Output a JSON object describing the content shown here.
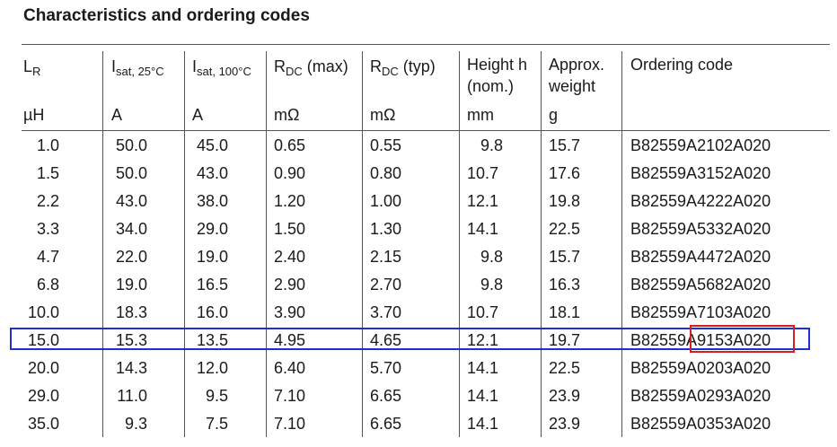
{
  "title": "Characteristics and ordering codes",
  "headers": {
    "lr": {
      "main": "L",
      "sub": "R",
      "unit": "µH"
    },
    "isat25": {
      "main": "I",
      "sub": "sat, 25°C",
      "unit": "A"
    },
    "isat100": {
      "main": "I",
      "sub": "sat, 100°C",
      "unit": "A"
    },
    "rdcmax": {
      "main": "R",
      "sub": "DC",
      "suffix": " (max)",
      "unit": "mΩ"
    },
    "rdctyp": {
      "main": "R",
      "sub": "DC",
      "suffix": " (typ)",
      "unit": "mΩ"
    },
    "height": {
      "line1": "Height h",
      "line2": "(nom.)",
      "unit": "mm"
    },
    "weight": {
      "line1": "Approx.",
      "line2": "weight",
      "unit": "g"
    },
    "code": {
      "line1": "Ordering code"
    }
  },
  "rows": [
    [
      "1.0",
      "50.0",
      "45.0",
      "0.65",
      "0.55",
      "9.8",
      "15.7",
      "B82559A2102A020"
    ],
    [
      "1.5",
      "50.0",
      "43.0",
      "0.90",
      "0.80",
      "10.7",
      "17.6",
      "B82559A3152A020"
    ],
    [
      "2.2",
      "43.0",
      "38.0",
      "1.20",
      "1.00",
      "12.1",
      "19.8",
      "B82559A4222A020"
    ],
    [
      "3.3",
      "34.0",
      "29.0",
      "1.50",
      "1.30",
      "14.1",
      "22.5",
      "B82559A5332A020"
    ],
    [
      "4.7",
      "22.0",
      "19.0",
      "2.40",
      "2.15",
      "9.8",
      "15.7",
      "B82559A4472A020"
    ],
    [
      "6.8",
      "19.0",
      "16.5",
      "2.90",
      "2.70",
      "9.8",
      "16.3",
      "B82559A5682A020"
    ],
    [
      "10.0",
      "18.3",
      "16.0",
      "3.90",
      "3.70",
      "10.7",
      "18.1",
      "B82559A7103A020"
    ],
    [
      "15.0",
      "15.3",
      "13.5",
      "4.95",
      "4.65",
      "12.1",
      "19.7",
      "B82559A9153A020"
    ],
    [
      "20.0",
      "14.3",
      "12.0",
      "6.40",
      "5.70",
      "14.1",
      "22.5",
      "B82559A0203A020"
    ],
    [
      "29.0",
      "11.0",
      "9.5",
      "7.10",
      "6.65",
      "14.1",
      "23.9",
      "B82559A0293A020"
    ],
    [
      "35.0",
      "9.3",
      "7.5",
      "7.10",
      "6.65",
      "14.1",
      "23.9",
      "B82559A0353A020"
    ]
  ],
  "highlight": {
    "row_color": "#1f2fd0",
    "code_color": "#d42020"
  }
}
